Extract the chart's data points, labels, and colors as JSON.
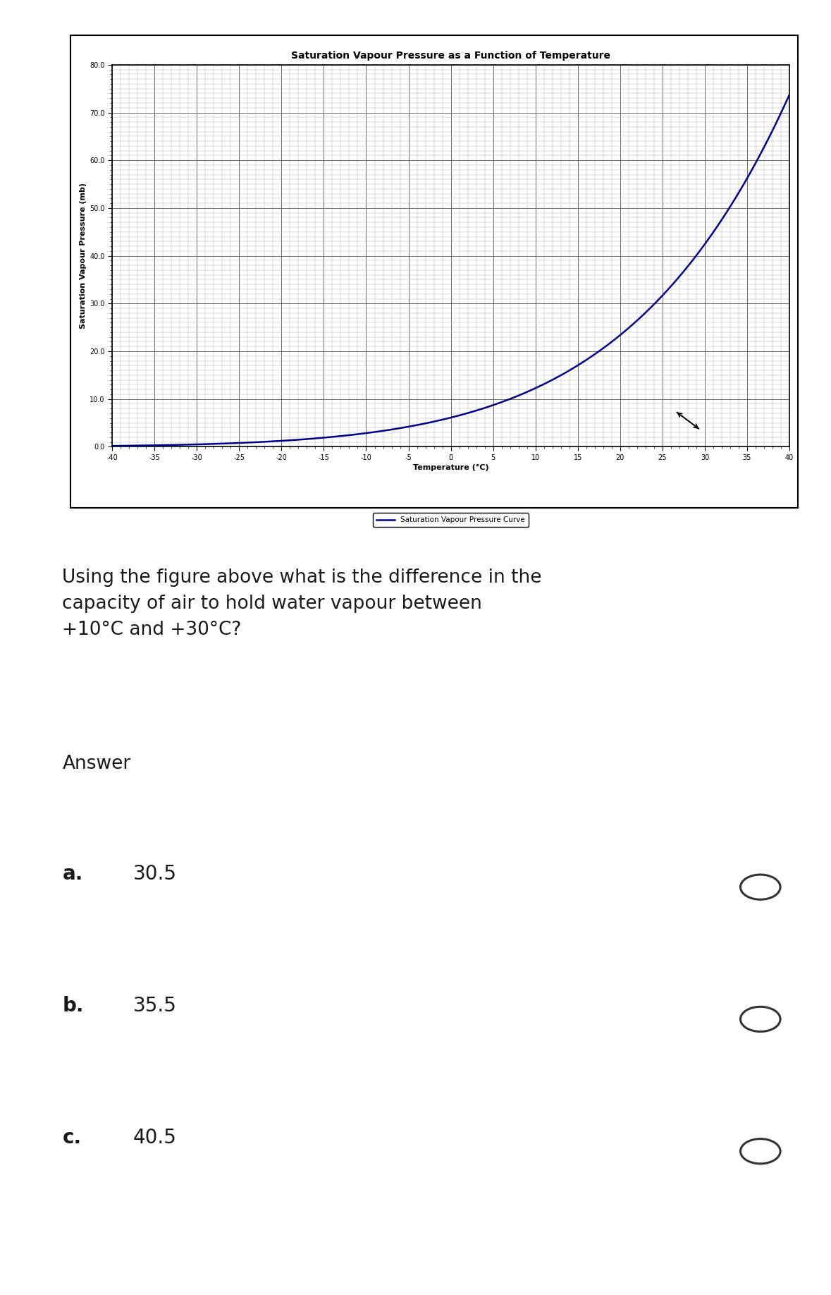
{
  "title": "Saturation Vapour Pressure as a Function of Temperature",
  "xlabel": "Temperature (°C)",
  "ylabel": "Saturation Vapour Pressure (mb)",
  "xlim": [
    -40,
    40
  ],
  "ylim": [
    0.0,
    80.0
  ],
  "xticks": [
    -40,
    -35,
    -30,
    -25,
    -20,
    -15,
    -10,
    -5,
    0,
    5,
    10,
    15,
    20,
    25,
    30,
    35,
    40
  ],
  "yticks": [
    0.0,
    10.0,
    20.0,
    30.0,
    40.0,
    50.0,
    60.0,
    70.0,
    80.0
  ],
  "line_color": "#00008B",
  "line_label": "Saturation Vapour Pressure Curve",
  "bg_color": "#ffffff",
  "plot_bg_color": "#ffffff",
  "title_fontsize": 10,
  "axis_label_fontsize": 8,
  "tick_fontsize": 7,
  "legend_fontsize": 7.5,
  "question_text": "Using the figure above what is the difference in the\ncapacity of air to hold water vapour between\n+10°C and +30°C?",
  "answer_label": "Answer",
  "option_labels": [
    "a.",
    "b.",
    "c."
  ],
  "option_values": [
    "30.5",
    "35.5",
    "40.5"
  ]
}
